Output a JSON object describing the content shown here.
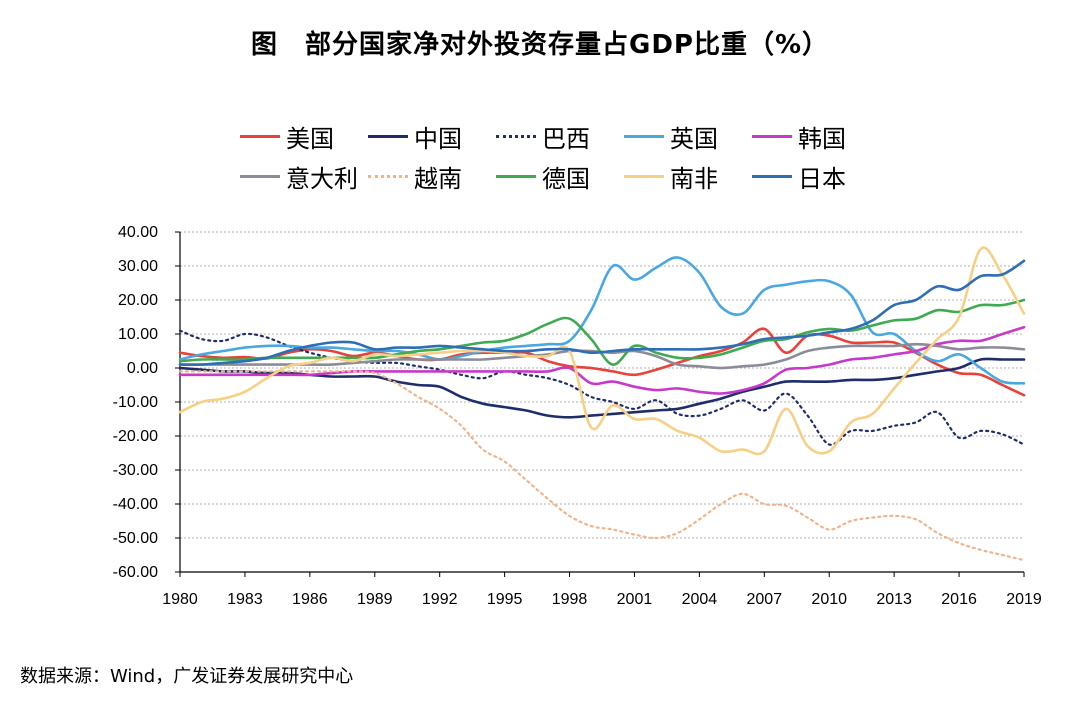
{
  "title": "图　部分国家净对外投资存量占GDP比重（%）",
  "source": "数据来源：Wind，广发证券发展研究中心",
  "chart_data": {
    "type": "line",
    "title": "图　部分国家净对外投资存量占GDP比重（%）",
    "xlabel": "",
    "ylabel": "",
    "ylim": [
      -60,
      40
    ],
    "xlim": [
      1980,
      2019
    ],
    "grid": true,
    "legend_position": "top",
    "x": [
      1980,
      1981,
      1982,
      1983,
      1984,
      1985,
      1986,
      1987,
      1988,
      1989,
      1990,
      1991,
      1992,
      1993,
      1994,
      1995,
      1996,
      1997,
      1998,
      1999,
      2000,
      2001,
      2002,
      2003,
      2004,
      2005,
      2006,
      2007,
      2008,
      2009,
      2010,
      2011,
      2012,
      2013,
      2014,
      2015,
      2016,
      2017,
      2018,
      2019
    ],
    "x_tick_labels": [
      "1980",
      "1983",
      "1986",
      "1989",
      "1992",
      "1995",
      "1998",
      "2001",
      "2004",
      "2007",
      "2010",
      "2013",
      "2016",
      "2019"
    ],
    "y_tick_labels": [
      "40.00",
      "30.00",
      "20.00",
      "10.00",
      "0.00",
      "-10.00",
      "-20.00",
      "-30.00",
      "-40.00",
      "-50.00",
      "-60.00"
    ],
    "series": [
      {
        "name": "美国",
        "color": "#e8423a",
        "dash": "solid",
        "values": [
          4.5,
          3.5,
          3.0,
          3.2,
          2.8,
          4.5,
          5.5,
          5.0,
          3.5,
          4.5,
          3.5,
          2.5,
          2.5,
          4.0,
          4.5,
          4.5,
          4.5,
          2.0,
          0.5,
          0.0,
          -1.0,
          -2.0,
          -0.5,
          1.5,
          3.5,
          5.0,
          7.5,
          11.5,
          4.5,
          9.5,
          9.5,
          7.5,
          7.5,
          7.5,
          4.5,
          1.0,
          -1.5,
          -2.0,
          -5.0,
          -8.0
        ]
      },
      {
        "name": "中国",
        "color": "#1f2d6b",
        "dash": "solid",
        "values": [
          0,
          -0.5,
          -1.0,
          -1.0,
          -1.5,
          -1.5,
          -2.0,
          -2.5,
          -2.5,
          -2.5,
          -4.0,
          -5.0,
          -5.5,
          -8.5,
          -10.5,
          -11.5,
          -12.5,
          -14.0,
          -14.5,
          -14.0,
          -13.5,
          -13.0,
          -12.5,
          -12.0,
          -10.5,
          -9.0,
          -7.0,
          -5.5,
          -4.0,
          -4.0,
          -4.0,
          -3.5,
          -3.5,
          -3.0,
          -2.0,
          -1.0,
          0.0,
          2.5,
          2.5,
          2.5
        ]
      },
      {
        "name": "巴西",
        "color": "#1f2d6b",
        "dash": "dotted",
        "values": [
          11.0,
          8.5,
          8.0,
          10.0,
          9.0,
          6.5,
          4.5,
          3.0,
          2.0,
          1.5,
          1.5,
          0.5,
          -0.5,
          -2.0,
          -3.0,
          -1.0,
          -2.0,
          -3.0,
          -5.0,
          -8.5,
          -10.0,
          -12.0,
          -9.5,
          -13.5,
          -14.0,
          -12.0,
          -9.5,
          -12.5,
          -7.5,
          -14.0,
          -22.5,
          -18.5,
          -18.5,
          -17.0,
          -16.0,
          -13.0,
          -20.5,
          -18.5,
          -19.5,
          -22.5
        ]
      },
      {
        "name": "英国",
        "color": "#4aa8e0",
        "dash": "solid",
        "values": [
          2.5,
          4.0,
          5.0,
          6.0,
          6.5,
          6.5,
          6.0,
          6.0,
          5.5,
          5.0,
          5.0,
          4.0,
          2.5,
          3.5,
          5.0,
          6.0,
          6.5,
          7.0,
          8.0,
          17.0,
          30.0,
          26.0,
          29.5,
          32.5,
          28.0,
          18.0,
          16.0,
          23.0,
          24.5,
          25.5,
          25.5,
          21.5,
          10.5,
          10.0,
          5.0,
          2.0,
          4.0,
          0.0,
          -4.0,
          -4.5
        ]
      },
      {
        "name": "韩国",
        "color": "#c739c9",
        "dash": "solid",
        "values": [
          -2.0,
          -2.0,
          -2.0,
          -2.0,
          -2.0,
          -2.0,
          -2.0,
          -1.5,
          -1.0,
          -1.0,
          -1.0,
          -1.0,
          -1.0,
          -1.0,
          -1.0,
          -1.0,
          -1.0,
          -1.0,
          0.0,
          -4.5,
          -4.0,
          -5.5,
          -6.5,
          -6.0,
          -7.0,
          -7.5,
          -6.5,
          -4.5,
          -0.5,
          0.0,
          1.0,
          2.5,
          3.0,
          4.0,
          5.0,
          7.0,
          8.0,
          8.0,
          10.0,
          12.0
        ]
      },
      {
        "name": "意大利",
        "color": "#8c8c99",
        "dash": "solid",
        "values": [
          1.0,
          1.0,
          1.0,
          1.0,
          1.0,
          1.0,
          1.0,
          1.0,
          1.5,
          2.0,
          2.5,
          2.5,
          2.5,
          2.5,
          2.5,
          3.0,
          3.5,
          4.0,
          5.0,
          5.0,
          4.5,
          5.0,
          3.5,
          1.0,
          0.5,
          0.0,
          0.5,
          1.0,
          2.5,
          5.0,
          6.0,
          6.5,
          6.5,
          6.5,
          7.0,
          6.5,
          5.5,
          6.0,
          6.0,
          5.5
        ]
      },
      {
        "name": "越南",
        "color": "#f2b38a",
        "dash": "dotted",
        "values": [
          -1.0,
          -1.0,
          -1.0,
          -1.0,
          -1.0,
          -1.0,
          -1.0,
          -1.0,
          -1.0,
          -1.5,
          -4.5,
          -8.5,
          -12.0,
          -17.0,
          -24.0,
          -27.5,
          -33.0,
          -38.5,
          -43.5,
          -46.5,
          -47.5,
          -49.0,
          -50.0,
          -48.5,
          -44.5,
          -40.0,
          -37.0,
          -40.0,
          -40.5,
          -44.0,
          -47.5,
          -45.0,
          -44.0,
          -43.5,
          -44.5,
          -48.5,
          -51.5,
          -53.5,
          -55.0,
          -56.5
        ]
      },
      {
        "name": "德国",
        "color": "#3faa4f",
        "dash": "solid",
        "values": [
          2.0,
          2.5,
          2.5,
          2.5,
          3.0,
          3.0,
          3.0,
          3.0,
          3.0,
          3.0,
          4.0,
          5.0,
          5.5,
          6.5,
          7.5,
          8.0,
          10.0,
          13.0,
          14.5,
          8.5,
          1.0,
          6.5,
          4.5,
          3.0,
          3.0,
          4.0,
          6.0,
          8.0,
          8.5,
          10.5,
          11.5,
          11.0,
          12.5,
          14.0,
          14.5,
          17.0,
          16.5,
          18.5,
          18.5,
          20.0
        ]
      },
      {
        "name": "南非",
        "color": "#f7cf85",
        "dash": "solid",
        "values": [
          -13.0,
          -10.0,
          -9.0,
          -7.0,
          -3.0,
          0.5,
          1.5,
          3.0,
          2.0,
          4.0,
          3.5,
          4.0,
          4.5,
          5.0,
          5.0,
          4.5,
          3.5,
          3.5,
          5.0,
          -17.5,
          -11.0,
          -15.0,
          -15.0,
          -18.5,
          -20.5,
          -24.5,
          -24.0,
          -24.5,
          -12.0,
          -23.0,
          -24.5,
          -16.0,
          -13.5,
          -6.0,
          1.5,
          8.5,
          15.0,
          35.0,
          27.5,
          16.0
        ]
      },
      {
        "name": "日本",
        "color": "#2f6db5",
        "dash": "solid",
        "values": [
          1.0,
          1.0,
          1.5,
          2.0,
          3.0,
          5.0,
          6.5,
          7.5,
          7.5,
          5.5,
          6.0,
          6.0,
          6.5,
          6.0,
          5.5,
          5.0,
          5.0,
          5.5,
          5.5,
          4.5,
          5.0,
          5.5,
          5.5,
          5.5,
          5.5,
          6.0,
          7.0,
          8.5,
          9.0,
          9.5,
          10.5,
          11.5,
          14.0,
          18.5,
          20.0,
          24.0,
          23.0,
          27.0,
          27.5,
          31.5
        ]
      }
    ]
  }
}
